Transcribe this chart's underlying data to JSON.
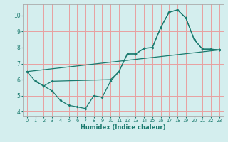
{
  "title": "",
  "xlabel": "Humidex (Indice chaleur)",
  "bg_color": "#d4eeee",
  "line_color": "#1a7a6e",
  "grid_color": "#e8a0a0",
  "xlim": [
    -0.5,
    23.5
  ],
  "ylim": [
    3.7,
    10.7
  ],
  "xticks": [
    0,
    1,
    2,
    3,
    4,
    5,
    6,
    7,
    8,
    9,
    10,
    11,
    12,
    13,
    14,
    15,
    16,
    17,
    18,
    19,
    20,
    21,
    22,
    23
  ],
  "yticks": [
    4,
    5,
    6,
    7,
    8,
    9,
    10
  ],
  "line1_x": [
    0,
    1,
    2,
    3,
    4,
    5,
    6,
    7,
    8,
    9,
    10,
    11,
    12,
    13,
    14,
    15,
    16,
    17,
    18,
    19,
    20,
    21,
    22,
    23
  ],
  "line1_y": [
    6.5,
    5.9,
    5.6,
    5.3,
    4.7,
    4.4,
    4.3,
    4.2,
    5.0,
    4.9,
    5.9,
    6.5,
    7.6,
    7.6,
    7.95,
    8.0,
    9.25,
    10.2,
    10.35,
    9.85,
    8.5,
    7.9,
    7.9,
    7.85
  ],
  "line2_x": [
    1,
    2,
    3,
    10,
    11,
    12,
    13,
    14,
    15,
    16,
    17,
    18,
    19,
    20,
    21,
    22,
    23
  ],
  "line2_y": [
    5.9,
    5.6,
    5.9,
    6.0,
    6.5,
    7.6,
    7.6,
    7.95,
    8.0,
    9.25,
    10.2,
    10.35,
    9.85,
    8.5,
    7.9,
    7.9,
    7.85
  ],
  "line3_x": [
    0,
    23
  ],
  "line3_y": [
    6.5,
    7.85
  ]
}
